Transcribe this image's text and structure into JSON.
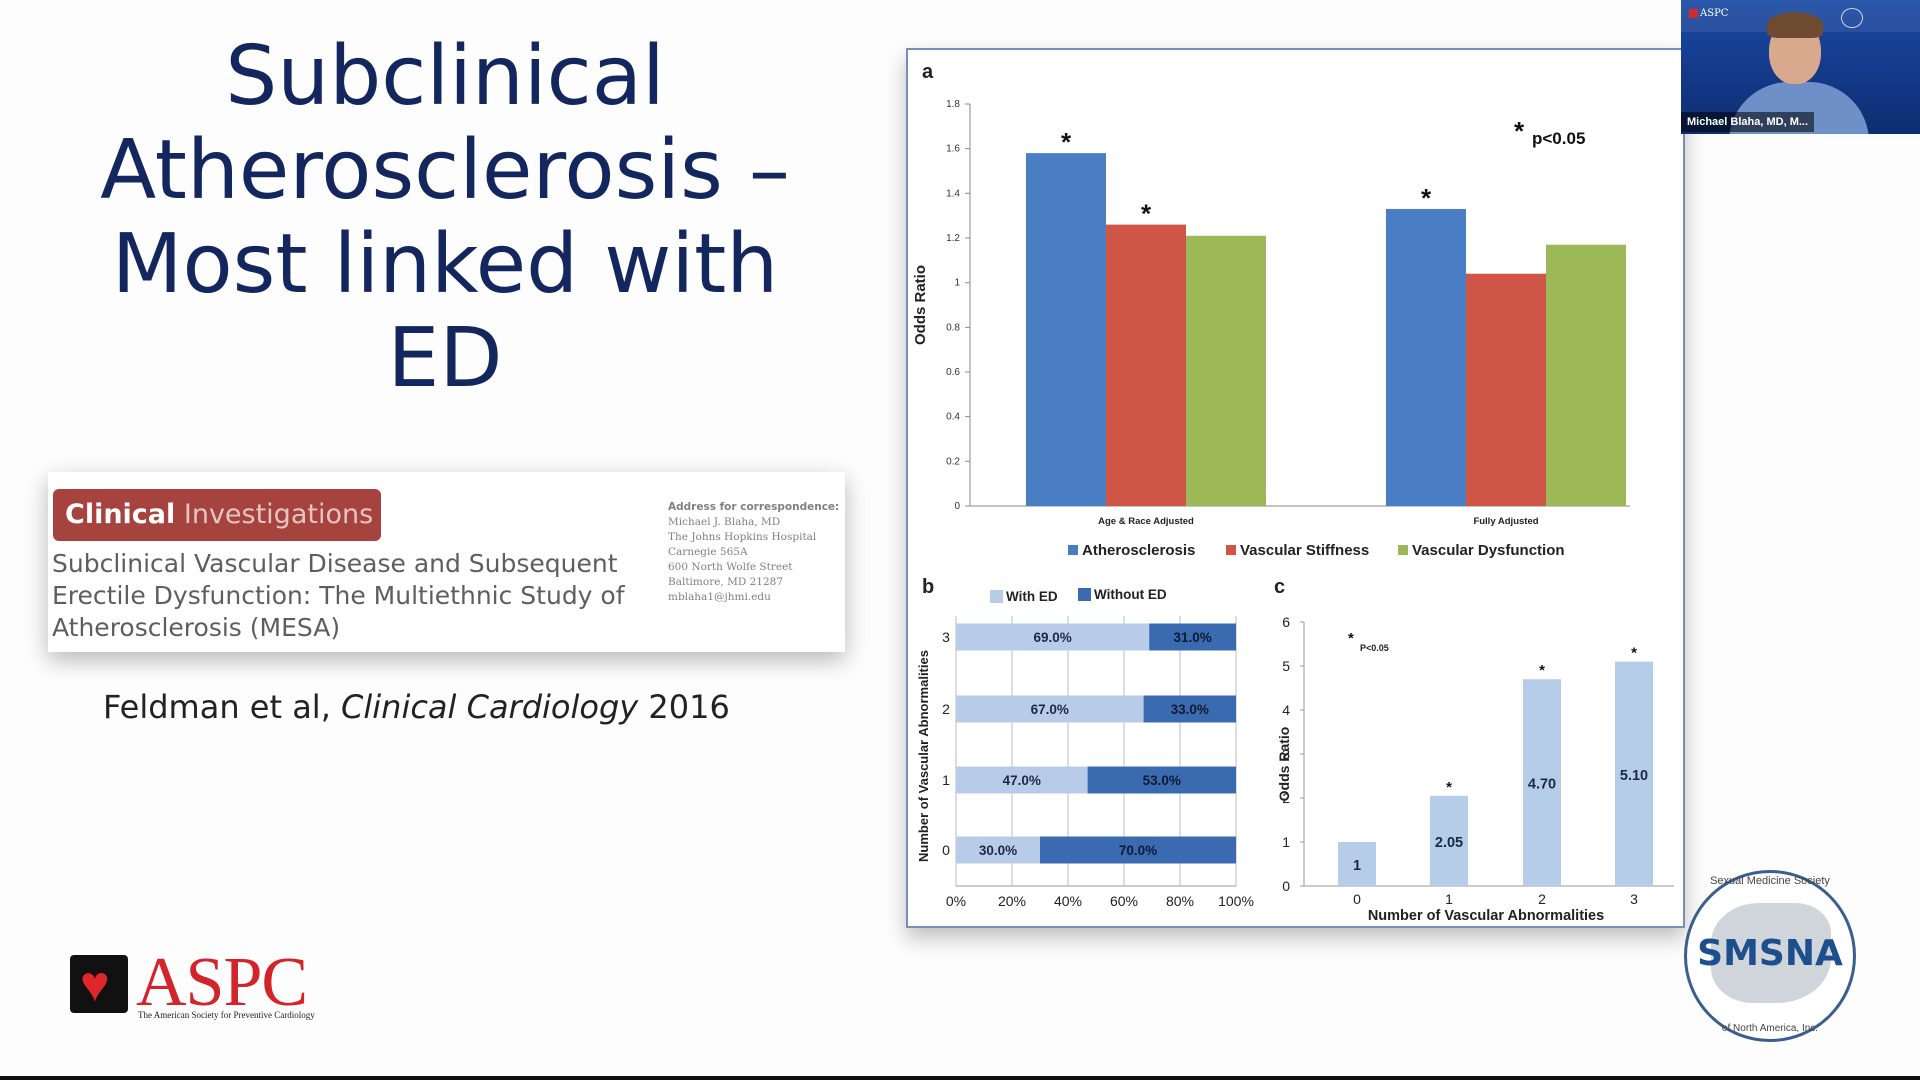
{
  "slide": {
    "title_lines": [
      "Subclinical",
      "Atherosclerosis –",
      "Most linked with",
      "ED"
    ],
    "citation": {
      "authors": "Feldman et al, ",
      "journal": "Clinical Cardiology",
      "year": " 2016"
    }
  },
  "paper": {
    "badge_bold": "Clinical",
    "badge_rest": " Investigations",
    "title": "Subclinical Vascular Disease and Subsequent Erectile Dysfunction: The Multiethnic Study of Atherosclerosis (MESA)",
    "address": [
      "Address for correspondence:",
      "Michael J. Blaha, MD",
      "The Johns Hopkins Hospital",
      "Carnegie 565A",
      "600 North Wolfe Street",
      "Baltimore, MD 21287",
      "mblaha1@jhmi.edu"
    ]
  },
  "webcam": {
    "name": "Michael Blaha, MD, M...",
    "corner_label": "ASPC"
  },
  "logos": {
    "aspc_word": "ASPC",
    "aspc_sub": "The American Society for Preventive Cardiology",
    "smsna_word": "SMSNA",
    "smsna_ring_top": "Sexual Medicine Society",
    "smsna_ring_bottom": "of North America, Inc."
  },
  "colors": {
    "title": "#13265e",
    "athero": "#4a7ec4",
    "stiffness": "#cf5646",
    "dysfunction": "#9cb857",
    "with_ed": "#b8cbe8",
    "without_ed": "#3a6bb0",
    "panel_c": "#b6cde9"
  },
  "chart_data": [
    {
      "panel": "a",
      "type": "bar",
      "ylabel": "Odds Ratio",
      "ylim": [
        0,
        1.8
      ],
      "yticks": [
        "0",
        "0.2",
        "0.4",
        "0.6",
        "0.8",
        "1",
        "1.2",
        "1.4",
        "1.6",
        "1.8"
      ],
      "categories": [
        "Age & Race Adjusted",
        "Fully Adjusted"
      ],
      "series": [
        {
          "name": "Atherosclerosis",
          "values": [
            1.58,
            1.33
          ],
          "sig": [
            true,
            true
          ]
        },
        {
          "name": "Vascular Stiffness",
          "values": [
            1.26,
            1.04
          ],
          "sig": [
            true,
            false
          ]
        },
        {
          "name": "Vascular Dysfunction",
          "values": [
            1.21,
            1.17
          ],
          "sig": [
            false,
            false
          ]
        }
      ],
      "annotation": "p<0.05",
      "sig_mark": "*"
    },
    {
      "panel": "b",
      "type": "bar",
      "orientation": "horizontal-stacked",
      "ylabel": "Number of Vascular Abnormalities",
      "categories": [
        "3",
        "2",
        "1",
        "0"
      ],
      "xticks": [
        "0%",
        "20%",
        "40%",
        "60%",
        "80%",
        "100%"
      ],
      "series": [
        {
          "name": "With ED",
          "values": [
            69.0,
            67.0,
            47.0,
            30.0
          ],
          "labels": [
            "69.0%",
            "67.0%",
            "47.0%",
            "30.0%"
          ]
        },
        {
          "name": "Without ED",
          "values": [
            31.0,
            33.0,
            53.0,
            70.0
          ],
          "labels": [
            "31.0%",
            "33.0%",
            "53.0%",
            "70.0%"
          ]
        }
      ]
    },
    {
      "panel": "c",
      "type": "bar",
      "xlabel": "Number of Vascular Abnormalities",
      "ylabel": "Odds Ratio",
      "ylim": [
        0,
        6
      ],
      "yticks": [
        "0",
        "1",
        "2",
        "3",
        "4",
        "5",
        "6"
      ],
      "categories": [
        "0",
        "1",
        "2",
        "3"
      ],
      "values": [
        1,
        2.05,
        4.7,
        5.1
      ],
      "labels": [
        "1",
        "2.05",
        "4.70",
        "5.10"
      ],
      "sig": [
        false,
        true,
        true,
        true
      ],
      "annotation": "P<0.05",
      "sig_mark": "*"
    }
  ]
}
